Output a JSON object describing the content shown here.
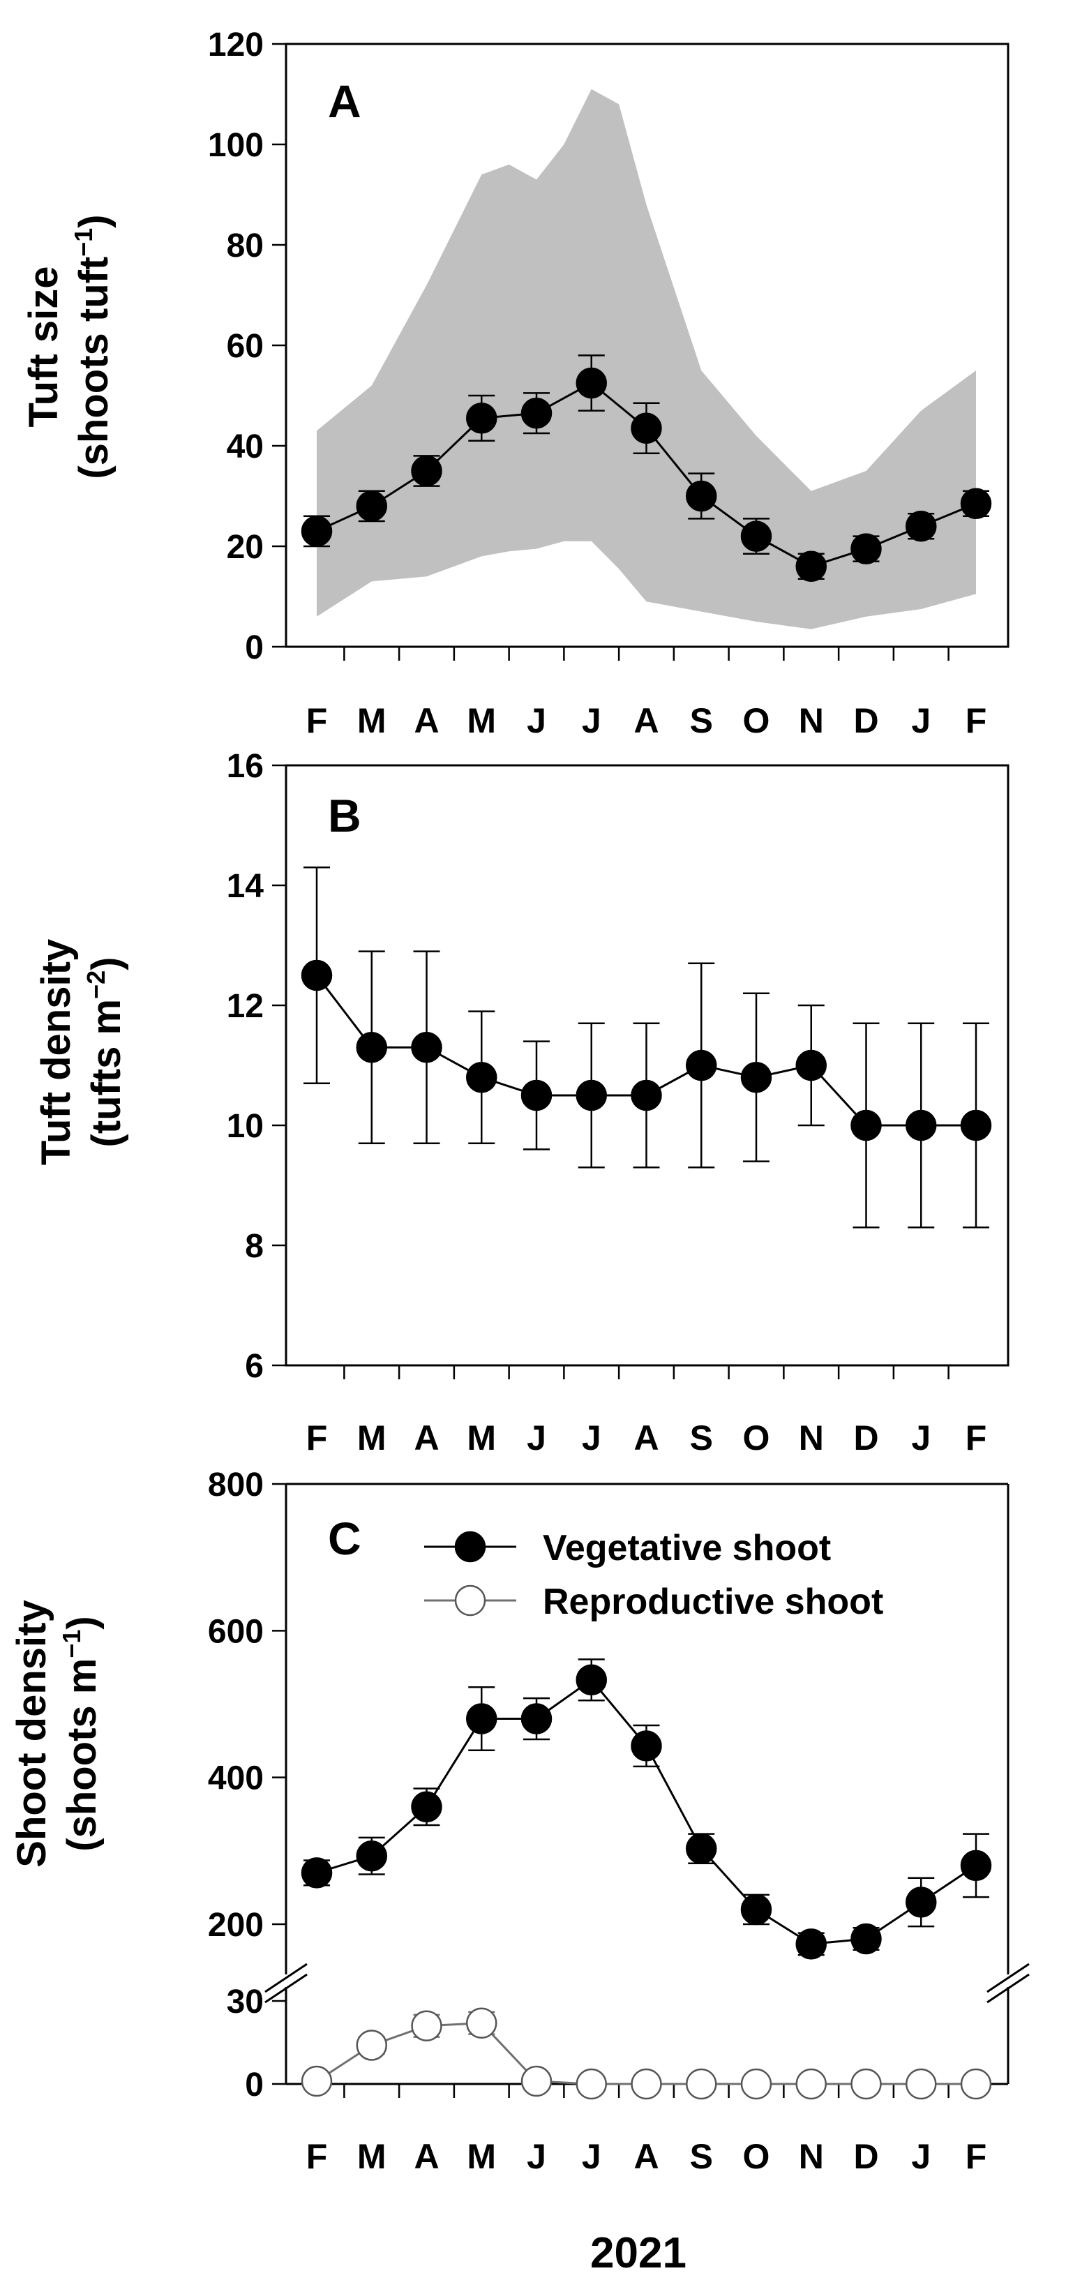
{
  "xlabel": "2021",
  "month_labels": [
    "F",
    "M",
    "A",
    "M",
    "J",
    "J",
    "A",
    "S",
    "O",
    "N",
    "D",
    "J",
    "F"
  ],
  "chart_data": [
    {
      "panel": "A",
      "type": "line",
      "title": "",
      "ylabel_line1": "Tuft size",
      "ylabel_line2": "(shoots tuft",
      "ylabel_sup": "−1",
      "ylabel_close": ")",
      "ylim": [
        0,
        120
      ],
      "yticks": [
        0,
        20,
        40,
        60,
        80,
        100,
        120
      ],
      "categories": [
        "F",
        "M",
        "A",
        "M",
        "J",
        "J",
        "A",
        "S",
        "O",
        "N",
        "D",
        "J",
        "F"
      ],
      "series": [
        {
          "name": "Tuft size",
          "marker": "filled",
          "values": [
            23,
            28,
            35,
            45.5,
            46.5,
            52.5,
            43.5,
            30,
            22,
            16,
            19.5,
            24,
            28.5
          ],
          "errors": [
            3,
            3,
            3,
            4.5,
            4,
            5.5,
            5,
            4.5,
            3.5,
            2.5,
            2.5,
            2.5,
            2.5
          ]
        }
      ],
      "range_band": {
        "label": "range",
        "x": [
          0,
          1,
          2,
          3,
          3.5,
          4,
          4.5,
          5,
          5.5,
          6,
          7,
          8,
          9,
          10,
          11,
          12
        ],
        "upper": [
          43,
          52,
          72,
          94,
          96,
          93,
          100,
          111,
          108,
          88,
          55,
          42,
          31,
          35,
          47,
          55
        ],
        "lower": [
          6,
          13,
          14,
          18,
          19,
          19.5,
          21,
          21,
          15.5,
          9,
          7,
          5,
          3.5,
          6,
          7.5,
          10.5
        ]
      }
    },
    {
      "panel": "B",
      "type": "line",
      "title": "",
      "ylabel_line1": "Tuft density",
      "ylabel_line2": "(tufts m",
      "ylabel_sup": "−2",
      "ylabel_close": ")",
      "ylim": [
        6,
        16
      ],
      "yticks": [
        6,
        8,
        10,
        12,
        14,
        16
      ],
      "categories": [
        "F",
        "M",
        "A",
        "M",
        "J",
        "J",
        "A",
        "S",
        "O",
        "N",
        "D",
        "J",
        "F"
      ],
      "series": [
        {
          "name": "Tuft density",
          "marker": "filled",
          "values": [
            12.5,
            11.3,
            11.3,
            10.8,
            10.5,
            10.5,
            10.5,
            11,
            10.8,
            11,
            10,
            10,
            10
          ],
          "errors": [
            1.8,
            1.6,
            1.6,
            1.1,
            0.9,
            1.2,
            1.2,
            1.7,
            1.4,
            1.0,
            1.7,
            1.7,
            1.7
          ]
        }
      ]
    },
    {
      "panel": "C",
      "type": "line",
      "title": "",
      "ylabel_line1": "Shoot density",
      "ylabel_line2": "(shoots m",
      "ylabel_sup": "−1",
      "ylabel_close": ")",
      "broken_axis": true,
      "upper_ylim": [
        160,
        800
      ],
      "upper_yticks": [
        200,
        400,
        600,
        800
      ],
      "lower_ylim": [
        0,
        32
      ],
      "lower_yticks": [
        0,
        30
      ],
      "categories": [
        "F",
        "M",
        "A",
        "M",
        "J",
        "J",
        "A",
        "S",
        "O",
        "N",
        "D",
        "J",
        "F"
      ],
      "legend_position": "top-right",
      "series": [
        {
          "name": "Vegetative shoot",
          "marker": "filled",
          "values": [
            270,
            293,
            360,
            480,
            480,
            533,
            443,
            303,
            220,
            173,
            180,
            230,
            280
          ],
          "errors": [
            17,
            25,
            25,
            43,
            28,
            28,
            28,
            20,
            20,
            15,
            15,
            33,
            43
          ]
        },
        {
          "name": "Reproductive shoot",
          "marker": "open",
          "values": [
            1,
            14,
            21,
            22,
            1,
            0,
            0,
            0,
            0,
            0,
            0,
            0,
            0
          ],
          "errors": [
            0,
            3,
            4,
            4,
            0,
            0,
            0,
            0,
            0,
            0,
            0,
            0,
            0
          ]
        }
      ]
    }
  ]
}
